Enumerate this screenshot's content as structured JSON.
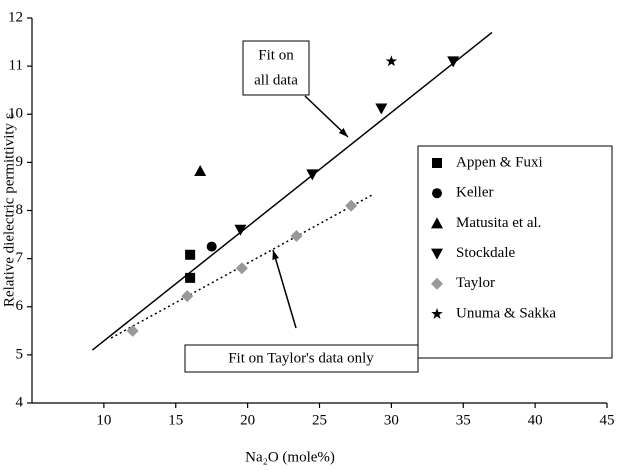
{
  "chart_data": {
    "type": "scatter",
    "x_label": "Na₂O (mole%)",
    "y_label": "Relative dielectric permittivity ε",
    "xlim": [
      5,
      45
    ],
    "xticks": [
      10,
      15,
      20,
      25,
      30,
      35,
      40,
      45
    ],
    "ylim": [
      4,
      12
    ],
    "yticks": [
      4,
      5,
      6,
      7,
      8,
      9,
      10,
      11,
      12
    ],
    "series": [
      {
        "name": "Appen & Fuxi",
        "marker": "square",
        "color": "#000000",
        "x": [
          16,
          16
        ],
        "values": [
          7.08,
          6.6
        ]
      },
      {
        "name": "Keller",
        "marker": "circle",
        "color": "#000000",
        "x": [
          17.5
        ],
        "values": [
          7.25
        ]
      },
      {
        "name": "Matusita et al.",
        "marker": "triangle-up",
        "color": "#000000",
        "x": [
          16.7
        ],
        "values": [
          8.82
        ]
      },
      {
        "name": "Stockdale",
        "marker": "triangle-down",
        "color": "#000000",
        "x": [
          19.5,
          24.5,
          29.3,
          34.3
        ],
        "values": [
          7.6,
          8.75,
          10.12,
          11.1
        ]
      },
      {
        "name": "Taylor",
        "marker": "diamond",
        "color": "#999999",
        "x": [
          12,
          15.8,
          19.6,
          23.4,
          27.2
        ],
        "values": [
          5.5,
          6.22,
          6.8,
          7.47,
          8.1
        ]
      },
      {
        "name": "Unuma & Sakka",
        "marker": "star",
        "color": "#000000",
        "x": [
          30
        ],
        "values": [
          11.1
        ]
      }
    ],
    "fit_lines": [
      {
        "dash": "solid",
        "color": "#000000",
        "x": [
          9.2,
          37
        ],
        "values": [
          5.1,
          11.7
        ]
      },
      {
        "dash": "dotted",
        "color": "#000000",
        "x": [
          10.5,
          28.7
        ],
        "values": [
          5.35,
          8.33
        ]
      }
    ],
    "annotations": [
      {
        "lines": [
          "Fit on",
          "all data"
        ]
      },
      {
        "lines": [
          "Fit on Taylor's data only"
        ]
      }
    ]
  }
}
